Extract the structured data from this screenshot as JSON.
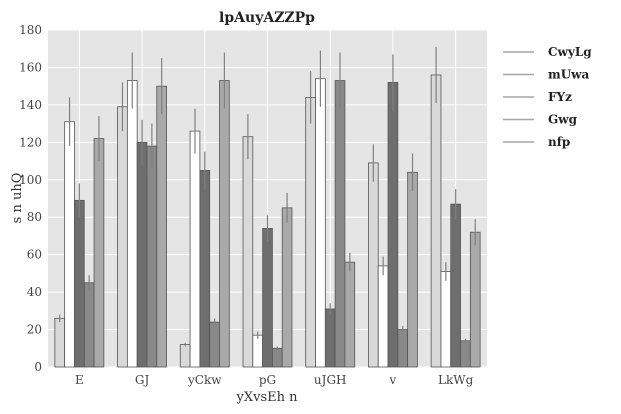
{
  "chart_data": {
    "type": "bar",
    "title": "lpAuyAZZPp",
    "xlabel": "yXvsEh n",
    "ylabel": "s n uhQ",
    "ylim": [
      0,
      180
    ],
    "yticks": [
      0,
      20,
      40,
      60,
      80,
      100,
      120,
      140,
      160,
      180
    ],
    "grid": true,
    "legend_position": "right",
    "categories": [
      "E",
      "GJ",
      "yCkw",
      "pG",
      "uJGH",
      "v",
      "LkWg"
    ],
    "series": [
      {
        "name": "CwyLg",
        "color": "#d9d9d9",
        "values": [
          26,
          139,
          12,
          123,
          144,
          109,
          156
        ],
        "errors": [
          2,
          13,
          1,
          12,
          14,
          10,
          15
        ]
      },
      {
        "name": "mUwa",
        "color": "#ffffff",
        "values": [
          131,
          153,
          126,
          17,
          154,
          54,
          51
        ],
        "errors": [
          13,
          15,
          12,
          2,
          15,
          5,
          5
        ]
      },
      {
        "name": "FYz",
        "color": "#6e6e6e",
        "values": [
          89,
          120,
          105,
          74,
          31,
          152,
          87
        ],
        "errors": [
          9,
          12,
          10,
          7,
          3,
          15,
          8
        ]
      },
      {
        "name": "Gwg",
        "color": "#898989",
        "values": [
          45,
          118,
          24,
          10,
          153,
          20,
          14
        ],
        "errors": [
          4,
          12,
          2,
          1,
          15,
          2,
          1
        ]
      },
      {
        "name": "nfp",
        "color": "#a9a9a9",
        "values": [
          122,
          150,
          153,
          85,
          56,
          104,
          72
        ],
        "errors": [
          12,
          15,
          15,
          8,
          5,
          10,
          7
        ]
      }
    ]
  }
}
